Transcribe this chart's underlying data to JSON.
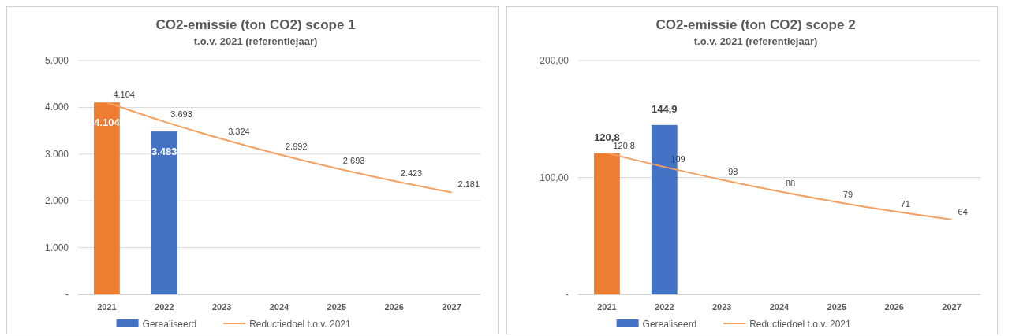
{
  "chart_data": [
    {
      "type": "bar",
      "title": "CO2-emissie (ton CO2) scope 1",
      "subtitle": "t.o.v. 2021 (referentiejaar)",
      "categories": [
        "2021",
        "2022",
        "2023",
        "2024",
        "2025",
        "2026",
        "2027"
      ],
      "ylim": [
        0,
        5000
      ],
      "yticks": [
        {
          "value": 0,
          "label": "-"
        },
        {
          "value": 1000,
          "label": "1.000"
        },
        {
          "value": 2000,
          "label": "2.000"
        },
        {
          "value": 3000,
          "label": "3.000"
        },
        {
          "value": 4000,
          "label": "4.000"
        },
        {
          "value": 5000,
          "label": "5.000"
        }
      ],
      "grid": "y",
      "legend": "bottom",
      "series": [
        {
          "name": "Gerealiseerd",
          "color": "#4472c4",
          "colors": [
            "#ed7d31",
            "#4472c4",
            null,
            null,
            null,
            null,
            null
          ],
          "values": [
            4104,
            3483,
            null,
            null,
            null,
            null,
            null
          ],
          "value_labels": [
            "4.104",
            "3.483",
            null,
            null,
            null,
            null,
            null
          ]
        },
        {
          "name": "Reductiedoel t.o.v. 2021",
          "type": "line",
          "color": "#f4a060",
          "values": [
            4104,
            3693,
            3324,
            2992,
            2693,
            2423,
            2181
          ],
          "value_labels": [
            "4.104",
            "3.693",
            "3.324",
            "2.992",
            "2.693",
            "2.423",
            "2.181"
          ]
        }
      ]
    },
    {
      "type": "bar",
      "title": "CO2-emissie (ton CO2) scope 2",
      "subtitle": "t.o.v. 2021 (referentiejaar)",
      "categories": [
        "2021",
        "2022",
        "2023",
        "2024",
        "2025",
        "2026",
        "2027"
      ],
      "ylim": [
        0,
        200
      ],
      "yticks": [
        {
          "value": 0,
          "label": "-"
        },
        {
          "value": 100,
          "label": "100,00"
        },
        {
          "value": 200,
          "label": "200,00"
        }
      ],
      "grid": "y",
      "legend": "bottom",
      "series": [
        {
          "name": "Gerealiseerd",
          "color": "#4472c4",
          "colors": [
            "#ed7d31",
            "#4472c4",
            null,
            null,
            null,
            null,
            null
          ],
          "values": [
            120.8,
            144.9,
            null,
            null,
            null,
            null,
            null
          ],
          "value_labels": [
            "120,8",
            "144,9",
            null,
            null,
            null,
            null,
            null
          ]
        },
        {
          "name": "Reductiedoel t.o.v. 2021",
          "type": "line",
          "color": "#f4a060",
          "values": [
            120.8,
            109,
            98,
            88,
            79,
            71,
            64
          ],
          "value_labels": [
            "120,8",
            "109",
            "98",
            "88",
            "79",
            "71",
            "64"
          ]
        }
      ]
    }
  ]
}
